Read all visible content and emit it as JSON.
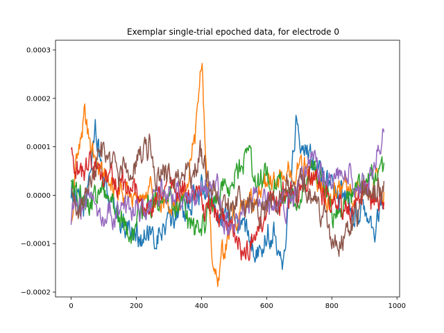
{
  "chart_data": {
    "type": "line",
    "title": "Exemplar single-trial epoched data, for electrode 0",
    "xlabel": "",
    "ylabel": "",
    "xlim": [
      -48,
      1008
    ],
    "ylim": [
      -0.00021,
      0.00032
    ],
    "x_ticks": [
      0,
      200,
      400,
      600,
      800,
      1000
    ],
    "x_tick_labels": [
      "0",
      "200",
      "400",
      "600",
      "800",
      "1000"
    ],
    "y_ticks": [
      -0.0002,
      -0.0001,
      0.0,
      0.0001,
      0.0002,
      0.0003
    ],
    "y_tick_labels": [
      "−0.0002",
      "−0.0001",
      "0.0000",
      "0.0001",
      "0.0002",
      "0.0003"
    ],
    "grid": false,
    "legend": "none",
    "n_samples": 961,
    "series": [
      {
        "color": "#1f77b4",
        "anchors": [
          [
            0,
            1e-05
          ],
          [
            40,
            -3e-05
          ],
          [
            75,
            0.00013
          ],
          [
            100,
            2e-05
          ],
          [
            150,
            -5e-05
          ],
          [
            200,
            -8e-05
          ],
          [
            260,
            -0.0001
          ],
          [
            300,
            -5e-05
          ],
          [
            350,
            -2e-05
          ],
          [
            400,
            1e-05
          ],
          [
            450,
            -3e-05
          ],
          [
            500,
            -5e-05
          ],
          [
            540,
            -8e-05
          ],
          [
            580,
            -0.0001
          ],
          [
            620,
            -7e-05
          ],
          [
            650,
            -0.00012
          ],
          [
            670,
            -2e-05
          ],
          [
            690,
            0.00015
          ],
          [
            720,
            0.00011
          ],
          [
            760,
            6e-05
          ],
          [
            800,
            2e-05
          ],
          [
            850,
            -3e-05
          ],
          [
            900,
            -5e-05
          ],
          [
            930,
            -8e-05
          ],
          [
            960,
            0.0
          ]
        ],
        "noise": 2.2e-05
      },
      {
        "color": "#ff7f0e",
        "anchors": [
          [
            0,
            -6e-05
          ],
          [
            20,
            0.0001
          ],
          [
            40,
            0.00015
          ],
          [
            70,
            8e-05
          ],
          [
            100,
            3e-05
          ],
          [
            150,
            1e-05
          ],
          [
            200,
            0.0
          ],
          [
            250,
            0.0
          ],
          [
            300,
            -2e-05
          ],
          [
            350,
            0.0
          ],
          [
            380,
            0.00012
          ],
          [
            395,
            0.00024
          ],
          [
            402,
            0.00028
          ],
          [
            410,
            0.0001
          ],
          [
            430,
            -0.0001
          ],
          [
            450,
            -0.00017
          ],
          [
            470,
            -0.00012
          ],
          [
            500,
            -5e-05
          ],
          [
            550,
            0.0
          ],
          [
            600,
            2e-05
          ],
          [
            650,
            3e-05
          ],
          [
            700,
            6e-05
          ],
          [
            750,
            3e-05
          ],
          [
            800,
            0.0
          ],
          [
            850,
            2e-05
          ],
          [
            900,
            0.0
          ],
          [
            960,
            2e-05
          ]
        ],
        "noise": 2e-05
      },
      {
        "color": "#2ca02c",
        "anchors": [
          [
            0,
            2e-05
          ],
          [
            50,
            -3e-05
          ],
          [
            100,
            0.0
          ],
          [
            150,
            -4e-05
          ],
          [
            180,
            -8e-05
          ],
          [
            220,
            -4e-05
          ],
          [
            260,
            0.0
          ],
          [
            300,
            0.0
          ],
          [
            340,
            -3e-05
          ],
          [
            380,
            -7e-05
          ],
          [
            420,
            -5e-05
          ],
          [
            450,
            -0.0
          ],
          [
            500,
            3e-05
          ],
          [
            540,
            7e-05
          ],
          [
            580,
            4e-05
          ],
          [
            620,
            2e-05
          ],
          [
            660,
            0.0
          ],
          [
            700,
            0.0
          ],
          [
            740,
            4e-05
          ],
          [
            770,
            2e-05
          ],
          [
            800,
            -3e-05
          ],
          [
            850,
            0.0
          ],
          [
            900,
            2e-05
          ],
          [
            960,
            6e-05
          ]
        ],
        "noise": 2.2e-05
      },
      {
        "color": "#d62728",
        "anchors": [
          [
            0,
            8e-05
          ],
          [
            30,
            4e-05
          ],
          [
            60,
            6e-05
          ],
          [
            100,
            5e-05
          ],
          [
            150,
            2e-05
          ],
          [
            200,
            0.0
          ],
          [
            250,
            -2e-05
          ],
          [
            300,
            3e-05
          ],
          [
            350,
            1e-05
          ],
          [
            400,
            -2e-05
          ],
          [
            450,
            -4e-05
          ],
          [
            500,
            -8e-05
          ],
          [
            530,
            -0.00013
          ],
          [
            560,
            -8e-05
          ],
          [
            600,
            -3e-05
          ],
          [
            650,
            0.0
          ],
          [
            700,
            0.0
          ],
          [
            750,
            3e-05
          ],
          [
            800,
            -2e-05
          ],
          [
            850,
            -3e-05
          ],
          [
            900,
            0.0
          ],
          [
            960,
            -3e-05
          ]
        ],
        "noise": 2.2e-05
      },
      {
        "color": "#9467bd",
        "anchors": [
          [
            0,
            -5e-05
          ],
          [
            30,
            -3e-05
          ],
          [
            60,
            0.0
          ],
          [
            100,
            -4e-05
          ],
          [
            150,
            -3e-05
          ],
          [
            200,
            -3e-05
          ],
          [
            250,
            -2e-05
          ],
          [
            300,
            2e-05
          ],
          [
            350,
            -2e-05
          ],
          [
            400,
            1e-05
          ],
          [
            450,
            2e-05
          ],
          [
            480,
            -8e-05
          ],
          [
            520,
            -5e-05
          ],
          [
            560,
            0.0
          ],
          [
            600,
            -2e-05
          ],
          [
            650,
            -3e-05
          ],
          [
            700,
            2e-05
          ],
          [
            740,
            9e-05
          ],
          [
            780,
            3e-05
          ],
          [
            820,
            6e-05
          ],
          [
            860,
            3e-05
          ],
          [
            900,
            2e-05
          ],
          [
            930,
            6e-05
          ],
          [
            960,
            0.00012
          ]
        ],
        "noise": 2.2e-05
      },
      {
        "color": "#8c564b",
        "anchors": [
          [
            0,
            2e-05
          ],
          [
            20,
            -5e-05
          ],
          [
            50,
            3e-05
          ],
          [
            80,
            7e-05
          ],
          [
            100,
            9e-05
          ],
          [
            150,
            4e-05
          ],
          [
            200,
            6e-05
          ],
          [
            240,
            0.0001
          ],
          [
            260,
            3e-05
          ],
          [
            300,
            5e-05
          ],
          [
            350,
            3e-05
          ],
          [
            380,
            5e-05
          ],
          [
            395,
            0.0001
          ],
          [
            420,
            3e-05
          ],
          [
            450,
            0.0
          ],
          [
            500,
            -3e-05
          ],
          [
            550,
            -2e-05
          ],
          [
            600,
            -3e-05
          ],
          [
            650,
            0.0
          ],
          [
            700,
            2e-05
          ],
          [
            750,
            0.0
          ],
          [
            800,
            -8e-05
          ],
          [
            820,
            -0.00012
          ],
          [
            850,
            -6e-05
          ],
          [
            900,
            0.0
          ],
          [
            960,
            1e-05
          ]
        ],
        "noise": 2.2e-05
      }
    ]
  }
}
